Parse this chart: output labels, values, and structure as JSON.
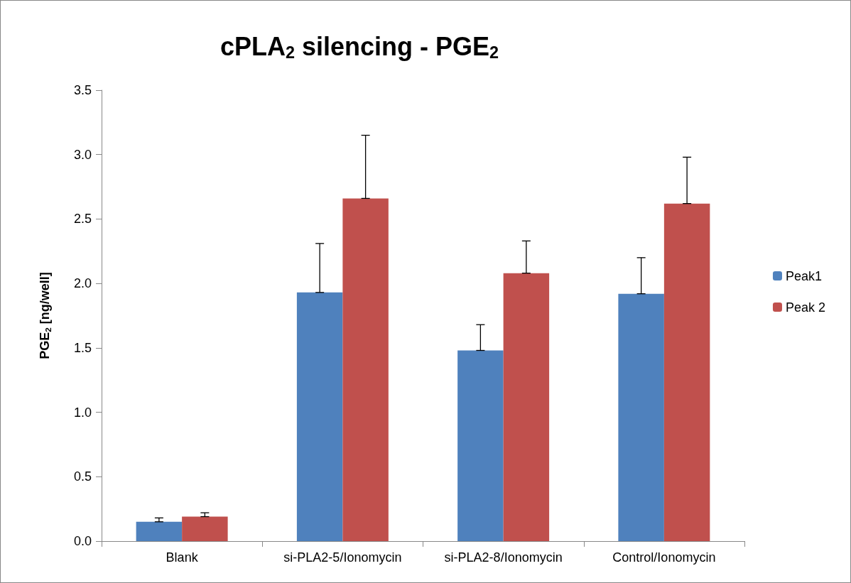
{
  "chart_data": {
    "type": "bar",
    "title": "cPLA$_{2}$ silencing - PGE$_{2}$",
    "ylabel": "PGE$_{2}$ [ng/well]",
    "categories": [
      "Blank",
      "si-PLA2-5/Ionomycin",
      "si-PLA2-8/Ionomycin",
      "Control/Ionomycin"
    ],
    "series": [
      {
        "name": "Peak1",
        "color": "#4f81bd",
        "values": [
          0.15,
          1.93,
          1.48,
          1.92
        ],
        "errors": [
          [
            0.15,
            0.18
          ],
          [
            1.93,
            2.31
          ],
          [
            1.48,
            1.68
          ],
          [
            1.92,
            2.2
          ]
        ]
      },
      {
        "name": "Peak 2",
        "color": "#c0504d",
        "values": [
          0.19,
          2.66,
          2.08,
          2.62
        ],
        "errors": [
          [
            0.19,
            0.22
          ],
          [
            2.66,
            3.15
          ],
          [
            2.08,
            2.33
          ],
          [
            2.62,
            2.98
          ]
        ]
      }
    ],
    "ylim": [
      0,
      3.5
    ],
    "yticks": [
      {
        "value": 0,
        "label": "0.0"
      },
      {
        "value": 0.5,
        "label": "0.5"
      },
      {
        "value": 1,
        "label": "1.0"
      },
      {
        "value": 1.5,
        "label": "1.5"
      },
      {
        "value": 2,
        "label": "2.0"
      },
      {
        "value": 2.5,
        "label": "2.5"
      },
      {
        "value": 3,
        "label": "3.0"
      },
      {
        "value": 3.5,
        "label": "3.5"
      }
    ],
    "grid": false,
    "legend": "right"
  }
}
